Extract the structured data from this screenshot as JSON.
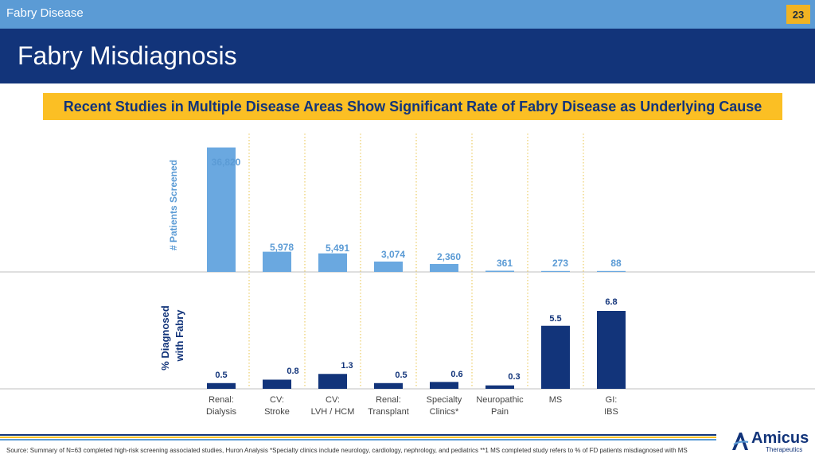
{
  "header": {
    "deck_title": "Fabry Disease",
    "page_number": "23"
  },
  "title": "Fabry Misdiagnosis",
  "subtitle": "Recent Studies in Multiple Disease Areas Show Significant Rate of Fabry Disease as Underlying Cause",
  "colors": {
    "screened_bar": "#6aa8e0",
    "diagnosed_bar": "#12347a",
    "header_blue": "#5b9bd5",
    "title_blue": "#12347a",
    "accent_yellow": "#fbbf24"
  },
  "chart_data": [
    {
      "type": "bar",
      "ylabel": "# Patients Screened",
      "categories": [
        "Renal: Dialysis",
        "CV: Stroke",
        "CV: LVH / HCM",
        "Renal: Transplant",
        "Specialty Clinics*",
        "Neuropathic Pain",
        "MS",
        "GI: IBS"
      ],
      "values": [
        36820,
        5978,
        5491,
        3074,
        2360,
        361,
        273,
        88
      ],
      "value_labels": [
        "36,820",
        "5,978",
        "5,491",
        "3,074",
        "2,360",
        "361",
        "273",
        "88"
      ],
      "ylim": [
        0,
        40000
      ]
    },
    {
      "type": "bar",
      "ylabel": "% Diagnosed with Fabry",
      "categories": [
        "Renal: Dialysis",
        "CV: Stroke",
        "CV: LVH / HCM",
        "Renal: Transplant",
        "Specialty Clinics*",
        "Neuropathic Pain",
        "MS",
        "GI: IBS"
      ],
      "values": [
        0.5,
        0.8,
        1.3,
        0.5,
        0.6,
        0.3,
        5.5,
        6.8
      ],
      "value_labels": [
        "0.5",
        "0.8",
        "1.3",
        "0.5",
        "0.6",
        "0.3",
        "5.5",
        "6.8"
      ],
      "ylim": [
        0,
        7.5
      ]
    }
  ],
  "category_labels": [
    [
      "Renal:",
      "Dialysis"
    ],
    [
      "CV:",
      "Stroke"
    ],
    [
      "CV:",
      "LVH / HCM"
    ],
    [
      "Renal:",
      "Transplant"
    ],
    [
      "Specialty",
      "Clinics*"
    ],
    [
      "Neuropathic",
      "Pain"
    ],
    [
      "MS",
      ""
    ],
    [
      "GI:",
      "IBS"
    ]
  ],
  "source": "Source: Summary of N=63 completed high-risk screening associated studies, Huron Analysis *Specialty clinics include neurology, cardiology, nephrology, and pediatrics   **1 MS completed study refers to % of FD patients misdiagnosed with MS",
  "logo": {
    "name": "Amicus",
    "sub": "Therapeutics"
  }
}
